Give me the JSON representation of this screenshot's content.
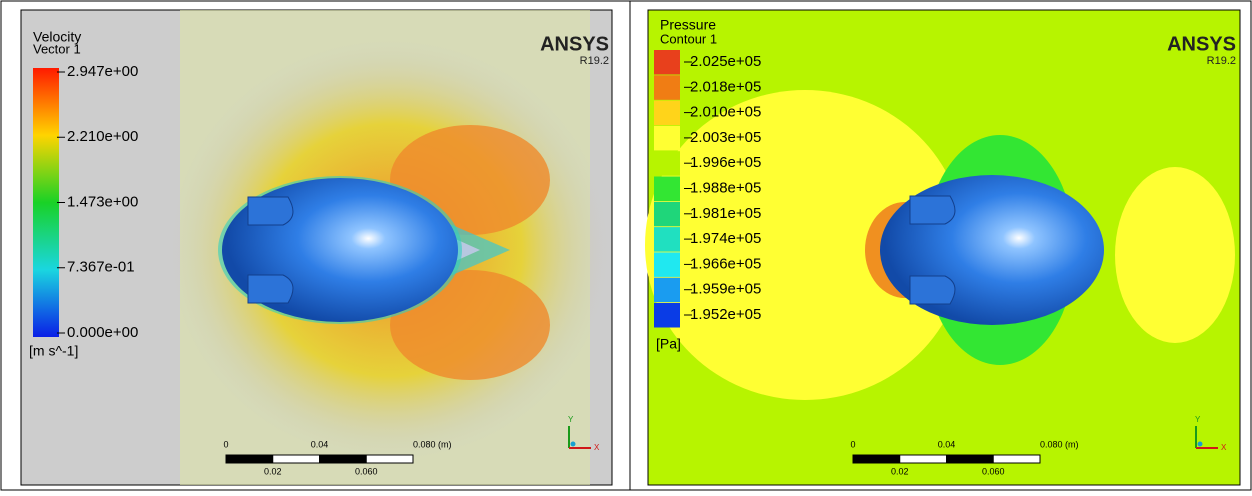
{
  "panels": [
    {
      "title": "Velocity",
      "subtitle": "Vector 1",
      "legend_labels": [
        "2.947e+00",
        "2.210e+00",
        "1.473e+00",
        "7.367e-01",
        "0.000e+00"
      ],
      "unit": "[m s^-1]",
      "brand": "ANSYS",
      "version": "R19.2",
      "scale_top": [
        "0",
        "0.04",
        "0.080 (m)"
      ],
      "scale_bottom": [
        "0.02",
        "0.060"
      ],
      "triad": [
        "Y",
        "X"
      ]
    },
    {
      "title": "Pressure",
      "subtitle": "Contour 1",
      "legend_labels": [
        "2.025e+05",
        "2.018e+05",
        "2.010e+05",
        "2.003e+05",
        "1.996e+05",
        "1.988e+05",
        "1.981e+05",
        "1.974e+05",
        "1.966e+05",
        "1.959e+05",
        "1.952e+05"
      ],
      "unit": "[Pa]",
      "brand": "ANSYS",
      "version": "R19.2",
      "scale_top": [
        "0",
        "0.04",
        "0.080 (m)"
      ],
      "scale_bottom": [
        "0.02",
        "0.060"
      ],
      "triad": [
        "Y",
        "X"
      ]
    }
  ]
}
